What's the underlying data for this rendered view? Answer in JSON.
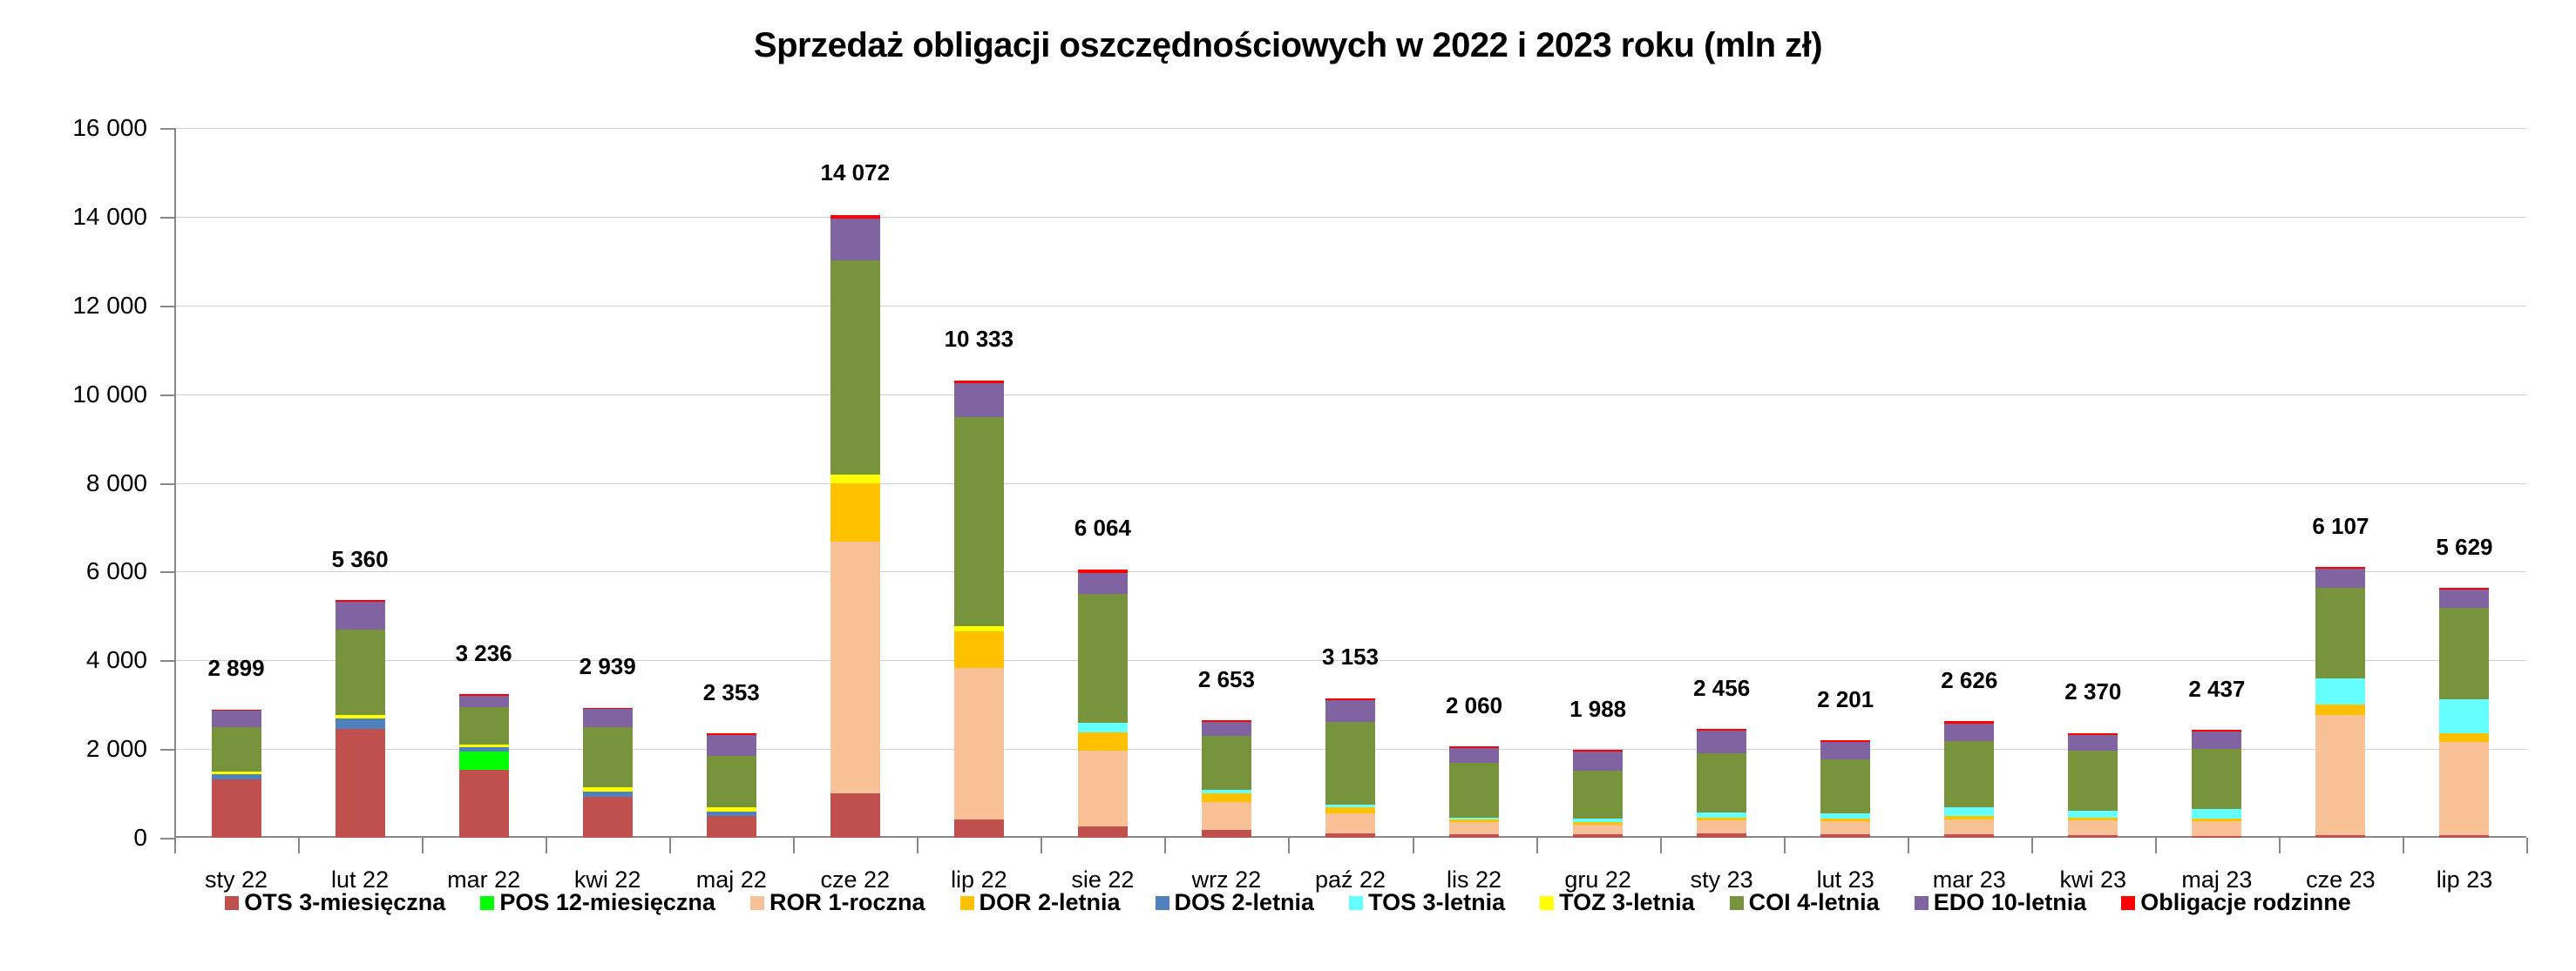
{
  "chart_data": {
    "type": "bar",
    "stacked": true,
    "title": "Sprzedaż obligacji oszczędnościowych w 2022 i 2023 roku (mln zł)",
    "xlabel": "",
    "ylabel": "",
    "ylim": [
      0,
      16000
    ],
    "yticks": [
      0,
      2000,
      4000,
      6000,
      8000,
      10000,
      12000,
      14000,
      16000
    ],
    "ytick_labels": [
      "0",
      "2 000",
      "4 000",
      "6 000",
      "8 000",
      "10 000",
      "12 000",
      "14 000",
      "16 000"
    ],
    "grid": true,
    "legend_position": "bottom",
    "categories": [
      "sty 22",
      "lut 22",
      "mar 22",
      "kwi 22",
      "maj 22",
      "cze 22",
      "lip 22",
      "sie 22",
      "wrz 22",
      "paź 22",
      "lis 22",
      "gru 22",
      "sty 23",
      "lut 23",
      "mar 23",
      "kwi 23",
      "maj 23",
      "cze 23",
      "lip 23"
    ],
    "totals": [
      2899,
      5360,
      3236,
      2939,
      2353,
      14072,
      10333,
      6064,
      2653,
      3153,
      2060,
      1988,
      2456,
      2201,
      2626,
      2370,
      2437,
      6107,
      5629
    ],
    "total_labels": [
      "2 899",
      "5 360",
      "3 236",
      "2 939",
      "2 353",
      "14 072",
      "10 333",
      "6 064",
      "2 653",
      "3 153",
      "2 060",
      "1 988",
      "2 456",
      "2 201",
      "2 626",
      "2 370",
      "2 437",
      "6 107",
      "5 629"
    ],
    "series": [
      {
        "name": "OTS 3-miesięczna",
        "color": "#C0504D",
        "values": [
          1320,
          2458,
          1523,
          915,
          497,
          997,
          415,
          257,
          183,
          105,
          85,
          85,
          105,
          85,
          85,
          65,
          46,
          65,
          65
        ]
      },
      {
        "name": "POS 12-miesięczna",
        "color": "#00FF00",
        "values": [
          0,
          0,
          425,
          0,
          0,
          0,
          0,
          0,
          0,
          0,
          0,
          0,
          0,
          0,
          0,
          0,
          0,
          0,
          0
        ]
      },
      {
        "name": "ROR 1-roczna",
        "color": "#F8C196",
        "values": [
          0,
          0,
          0,
          0,
          0,
          5686,
          3406,
          1698,
          627,
          451,
          275,
          216,
          294,
          294,
          333,
          333,
          333,
          2706,
          2098
        ]
      },
      {
        "name": "DOR 2-letnia",
        "color": "#FFC000",
        "values": [
          0,
          0,
          0,
          0,
          0,
          1313,
          839,
          415,
          196,
          137,
          59,
          59,
          59,
          59,
          78,
          59,
          59,
          235,
          196
        ]
      },
      {
        "name": "DOS 2-letnia",
        "color": "#4F81BD",
        "values": [
          118,
          235,
          98,
          131,
          98,
          0,
          0,
          0,
          0,
          0,
          0,
          0,
          0,
          0,
          0,
          0,
          0,
          0,
          0
        ]
      },
      {
        "name": "TOS 3-letnia",
        "color": "#66FFFF",
        "values": [
          0,
          0,
          0,
          0,
          0,
          0,
          0,
          217,
          78,
          59,
          39,
          78,
          118,
          118,
          196,
          157,
          216,
          588,
          765
        ]
      },
      {
        "name": "TOZ 3-letnia",
        "color": "#FFFF00",
        "values": [
          45,
          78,
          59,
          98,
          98,
          197,
          118,
          0,
          0,
          0,
          0,
          0,
          0,
          0,
          0,
          0,
          0,
          0,
          0
        ]
      },
      {
        "name": "COI 4-letnia",
        "color": "#77933C",
        "values": [
          1013,
          1922,
          850,
          1353,
          1157,
          4817,
          4709,
          2902,
          1216,
          1863,
          1235,
          1078,
          1333,
          1216,
          1490,
          1353,
          1353,
          2039,
          2059
        ]
      },
      {
        "name": "EDO 10-letnia",
        "color": "#8064A2",
        "values": [
          372,
          627,
          248,
          412,
          470,
          958,
          760,
          484,
          314,
          490,
          333,
          431,
          510,
          392,
          392,
          353,
          392,
          431,
          412
        ]
      },
      {
        "name": "Obligacje rodzinne",
        "color": "#FF0000",
        "values": [
          20,
          40,
          39,
          20,
          33,
          79,
          59,
          79,
          39,
          39,
          39,
          39,
          39,
          39,
          59,
          39,
          39,
          39,
          39
        ]
      }
    ]
  }
}
